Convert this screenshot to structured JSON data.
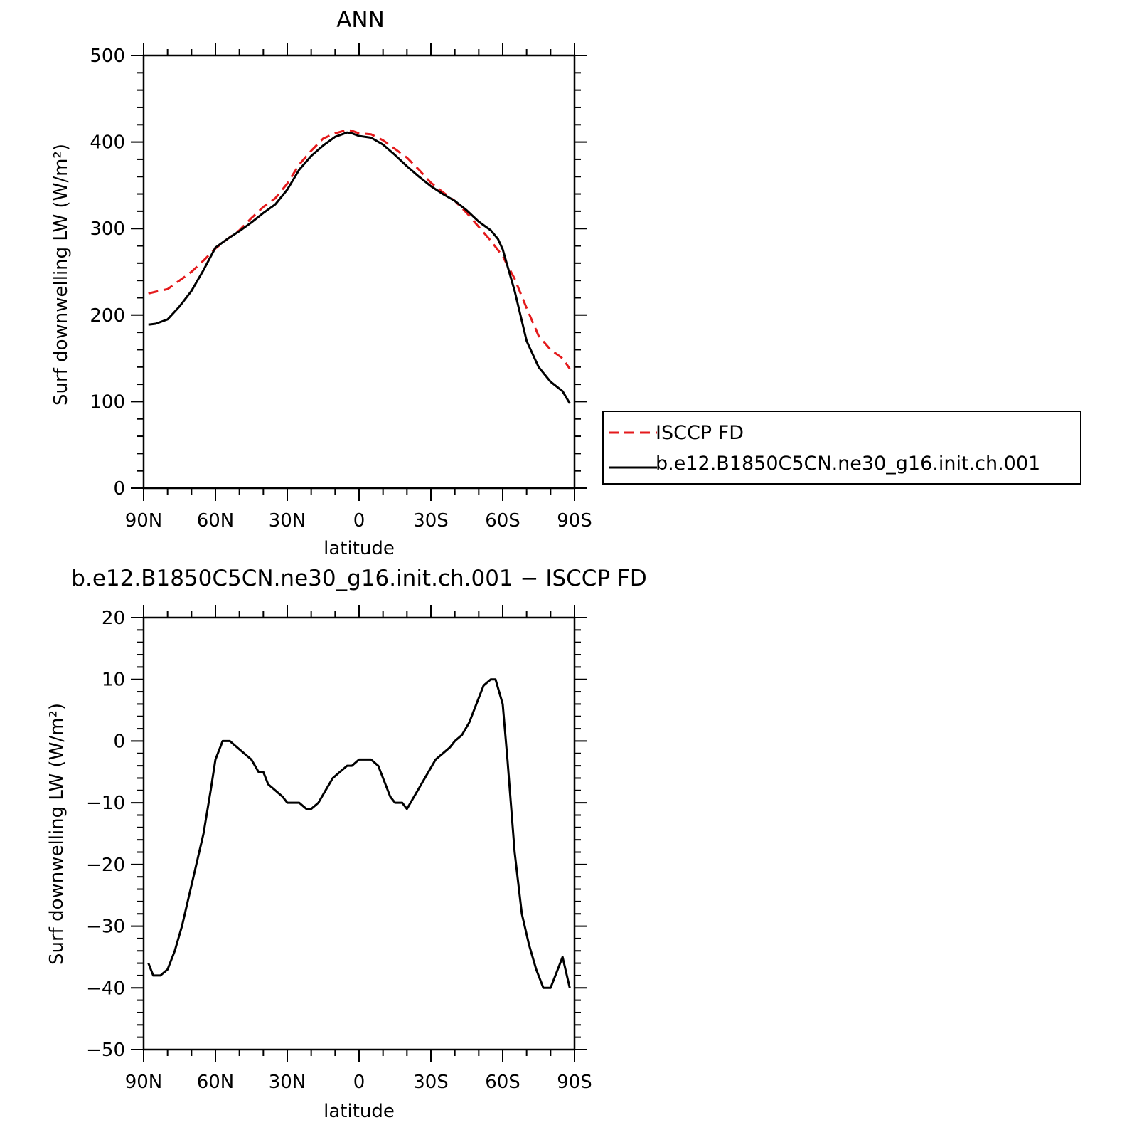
{
  "chart_data": [
    {
      "type": "line",
      "title": "ANN",
      "xlabel": "latitude",
      "ylabel": "Surf downwelling LW (W/m²)",
      "xlim": [
        90,
        -90
      ],
      "ylim": [
        0,
        500
      ],
      "x_ticks": [
        90,
        60,
        30,
        0,
        -30,
        -60,
        -90
      ],
      "x_tick_labels": [
        "90N",
        "60N",
        "30N",
        "0",
        "30S",
        "60S",
        "90S"
      ],
      "y_ticks": [
        0,
        100,
        200,
        300,
        400,
        500
      ],
      "y_tick_labels": [
        "0",
        "100",
        "200",
        "300",
        "400",
        "500"
      ],
      "legend": {
        "placement": "right",
        "entries": [
          "ISCCP FD",
          "b.e12.B1850C5CN.ne30_g16.init.ch.001"
        ]
      },
      "series": [
        {
          "name": "ISCCP FD",
          "color": "#e41a1c",
          "dash": true,
          "x": [
            88,
            85,
            80,
            75,
            70,
            65,
            60,
            55,
            50,
            45,
            40,
            35,
            30,
            25,
            20,
            15,
            10,
            5,
            3,
            0,
            -5,
            -10,
            -15,
            -20,
            -25,
            -30,
            -35,
            -40,
            -45,
            -50,
            -55,
            -60,
            -65,
            -70,
            -75,
            -80,
            -85,
            -88
          ],
          "y": [
            225,
            227,
            230,
            240,
            250,
            263,
            277,
            288,
            298,
            312,
            325,
            335,
            352,
            374,
            390,
            404,
            410,
            414,
            413,
            410,
            409,
            402,
            392,
            382,
            368,
            353,
            342,
            332,
            318,
            302,
            286,
            268,
            242,
            208,
            176,
            160,
            150,
            138
          ]
        },
        {
          "name": "b.e12.B1850C5CN.ne30_g16.init.ch.001",
          "color": "#000000",
          "dash": false,
          "x": [
            88,
            85,
            80,
            75,
            70,
            65,
            60,
            55,
            50,
            45,
            40,
            35,
            30,
            25,
            20,
            15,
            10,
            5,
            3,
            0,
            -5,
            -10,
            -15,
            -20,
            -25,
            -30,
            -35,
            -40,
            -45,
            -50,
            -55,
            -58,
            -60,
            -65,
            -70,
            -75,
            -80,
            -85,
            -88
          ],
          "y": [
            189,
            190,
            195,
            210,
            228,
            252,
            278,
            288,
            297,
            307,
            318,
            328,
            345,
            368,
            384,
            396,
            406,
            411,
            410,
            407,
            405,
            397,
            385,
            372,
            360,
            349,
            340,
            332,
            321,
            308,
            298,
            288,
            276,
            228,
            170,
            140,
            123,
            112,
            98
          ]
        }
      ]
    },
    {
      "type": "line",
      "title": "b.e12.B1850C5CN.ne30_g16.init.ch.001 − ISCCP FD",
      "xlabel": "latitude",
      "ylabel": "Surf downwelling LW (W/m²)",
      "xlim": [
        90,
        -90
      ],
      "ylim": [
        -50,
        20
      ],
      "x_ticks": [
        90,
        60,
        30,
        0,
        -30,
        -60,
        -90
      ],
      "x_tick_labels": [
        "90N",
        "60N",
        "30N",
        "0",
        "30S",
        "60S",
        "90S"
      ],
      "y_ticks": [
        -50,
        -40,
        -30,
        -20,
        -10,
        0,
        10,
        20
      ],
      "y_tick_labels": [
        "−50",
        "−40",
        "−30",
        "−20",
        "−10",
        "0",
        "10",
        "20"
      ],
      "series": [
        {
          "color": "#000000",
          "dash": false,
          "x": [
            88,
            86,
            83,
            80,
            77,
            74,
            71,
            68,
            65,
            62,
            60,
            57,
            54,
            51,
            48,
            45,
            42,
            40,
            38,
            35,
            32,
            30,
            28,
            25,
            22,
            20,
            17,
            14,
            11,
            8,
            5,
            3,
            0,
            -3,
            -5,
            -8,
            -10,
            -13,
            -15,
            -18,
            -20,
            -23,
            -26,
            -29,
            -32,
            -35,
            -38,
            -40,
            -43,
            -46,
            -49,
            -52,
            -55,
            -57,
            -60,
            -62,
            -65,
            -68,
            -71,
            -74,
            -77,
            -80,
            -82,
            -85,
            -88
          ],
          "y": [
            -36,
            -38,
            -38,
            -37,
            -34,
            -30,
            -25,
            -20,
            -15,
            -8,
            -3,
            0,
            0,
            -1,
            -2,
            -3,
            -5,
            -5,
            -7,
            -8,
            -9,
            -10,
            -10,
            -10,
            -11,
            -11,
            -10,
            -8,
            -6,
            -5,
            -4,
            -4,
            -3,
            -3,
            -3,
            -4,
            -6,
            -9,
            -10,
            -10,
            -11,
            -9,
            -7,
            -5,
            -3,
            -2,
            -1,
            0,
            1,
            3,
            6,
            9,
            10,
            10,
            6,
            -3,
            -18,
            -28,
            -33,
            -37,
            -40,
            -40,
            -38,
            -35,
            -40
          ]
        }
      ]
    }
  ]
}
